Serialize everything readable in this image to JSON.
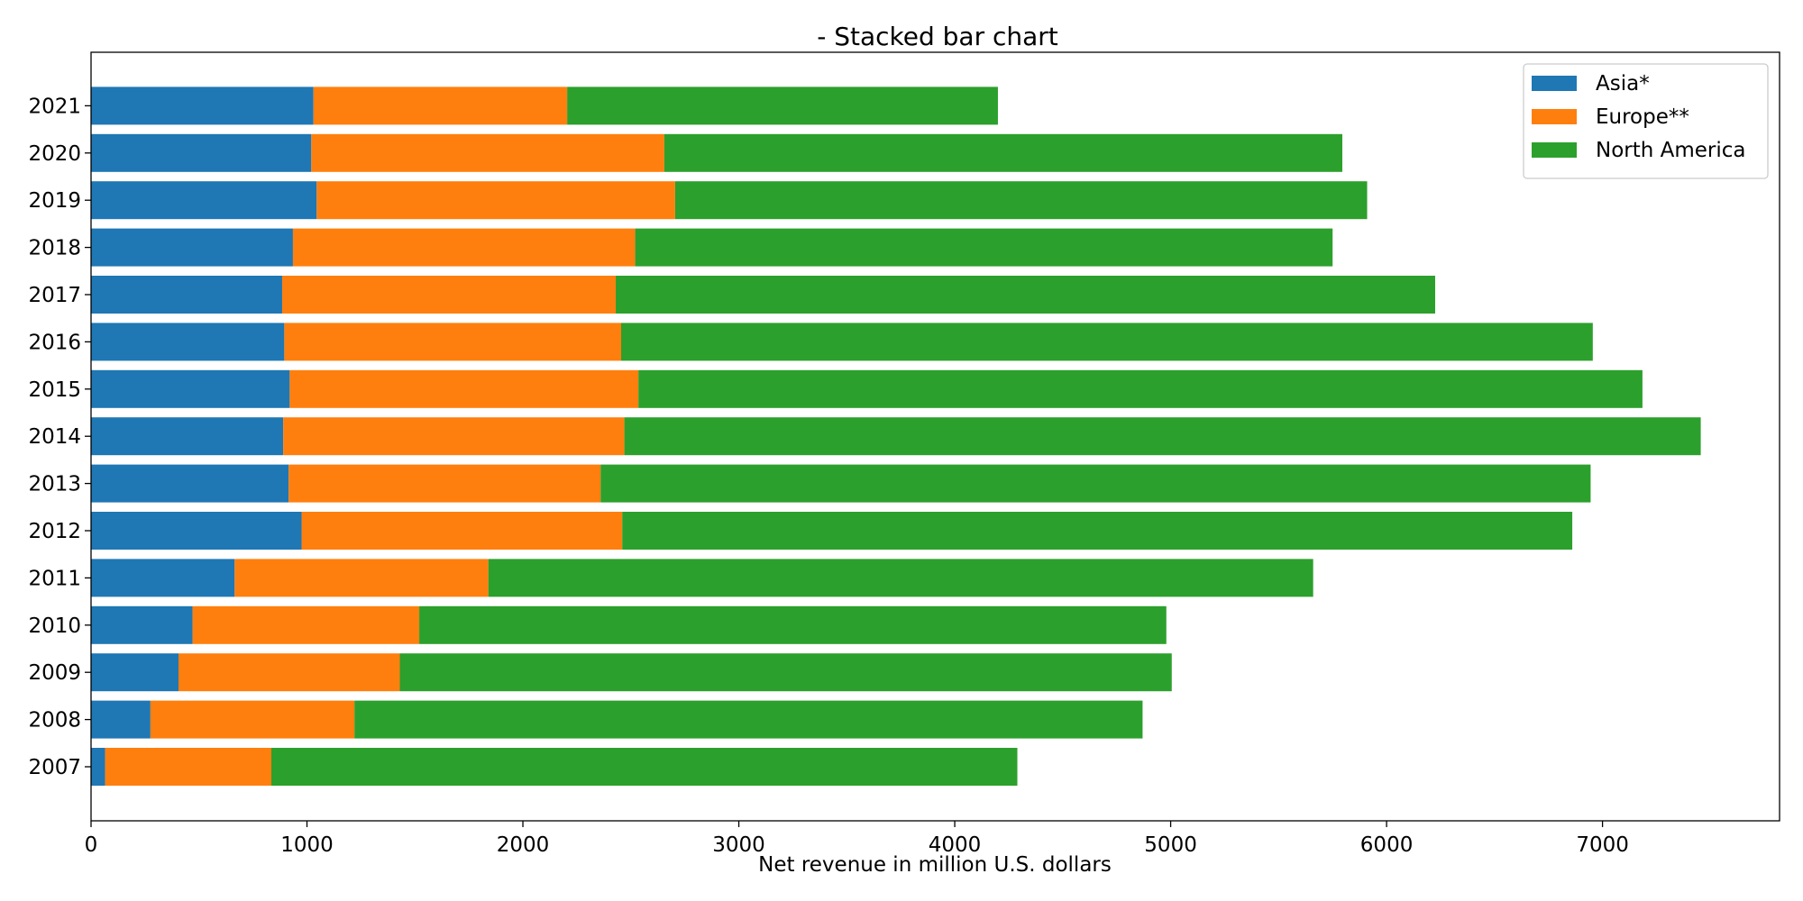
{
  "chart_data": {
    "type": "bar",
    "orientation": "horizontal",
    "stacked": true,
    "title": "- Stacked bar chart",
    "xlabel": "Net revenue in million U.S. dollars",
    "ylabel": "",
    "xlim": [
      0,
      7820
    ],
    "xticks": [
      0,
      1000,
      2000,
      3000,
      4000,
      5000,
      6000,
      7000
    ],
    "grid": false,
    "legend_position": "top-right",
    "categories": [
      "2007",
      "2008",
      "2009",
      "2010",
      "2011",
      "2012",
      "2013",
      "2014",
      "2015",
      "2016",
      "2017",
      "2018",
      "2019",
      "2020",
      "2021"
    ],
    "series": [
      {
        "name": "Asia*",
        "color": "#1f77b4",
        "values": [
          65,
          275,
          405,
          470,
          665,
          975,
          915,
          890,
          920,
          895,
          885,
          935,
          1045,
          1020,
          1030
        ]
      },
      {
        "name": "Europe**",
        "color": "#ff7f0e",
        "values": [
          770,
          945,
          1025,
          1050,
          1175,
          1485,
          1445,
          1580,
          1615,
          1560,
          1545,
          1585,
          1660,
          1635,
          1175
        ]
      },
      {
        "name": "North America",
        "color": "#2ca02c",
        "values": [
          3455,
          3650,
          3575,
          3460,
          3820,
          4400,
          4585,
          4985,
          4650,
          4500,
          3795,
          3230,
          3205,
          3140,
          1995
        ]
      }
    ]
  }
}
